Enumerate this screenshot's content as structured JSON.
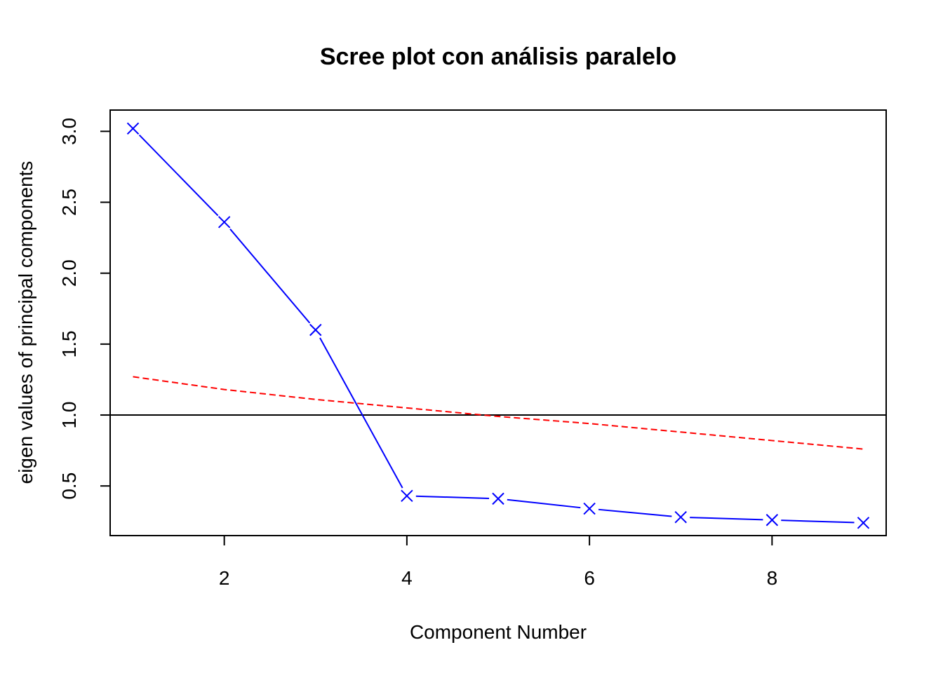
{
  "chart_data": {
    "type": "line",
    "title": "Scree plot con análisis paralelo",
    "xlabel": "Component Number",
    "ylabel": "eigen values of principal components",
    "xlim": [
      0.75,
      9.25
    ],
    "ylim": [
      0.15,
      3.15
    ],
    "x_ticks": [
      2,
      4,
      6,
      8
    ],
    "x_tick_labels": [
      "2",
      "4",
      "6",
      "8"
    ],
    "y_ticks": [
      0.5,
      1.0,
      1.5,
      2.0,
      2.5,
      3.0
    ],
    "y_tick_labels": [
      "0.5",
      "1.0",
      "1.5",
      "2.0",
      "2.5",
      "3.0"
    ],
    "x": [
      1,
      2,
      3,
      4,
      5,
      6,
      7,
      8,
      9
    ],
    "series": [
      {
        "values": [
          3.02,
          2.36,
          1.6,
          0.43,
          0.41,
          0.34,
          0.28,
          0.26,
          0.24
        ],
        "color": "#0000ff",
        "line_style": "solid",
        "marker": "x"
      },
      {
        "values": [
          1.27,
          1.18,
          1.11,
          1.05,
          0.99,
          0.94,
          0.88,
          0.82,
          0.76
        ],
        "color": "#ff0000",
        "line_style": "dashed",
        "marker": "none"
      }
    ],
    "reference_line": {
      "y": 1.0,
      "color": "#000000"
    },
    "grid": false,
    "legend": "none"
  }
}
